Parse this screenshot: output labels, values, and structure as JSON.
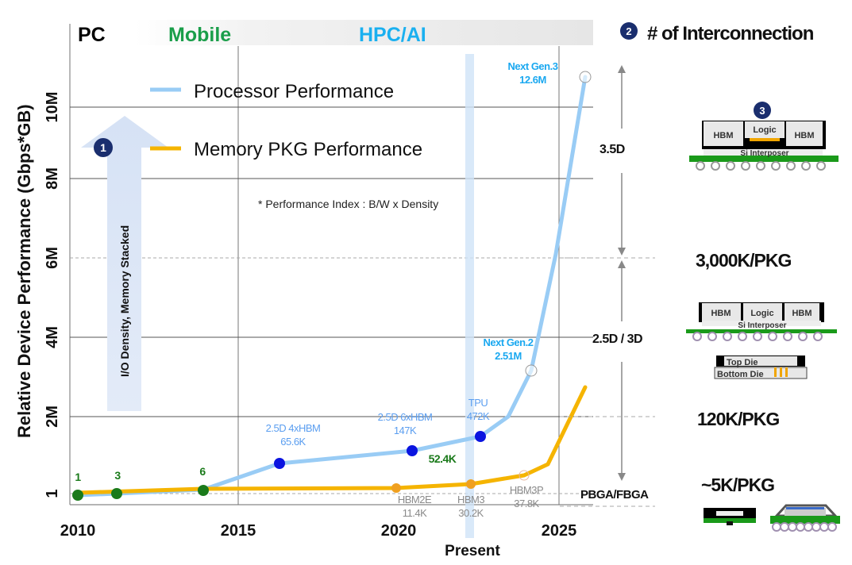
{
  "chart_data": {
    "type": "line",
    "title": "",
    "ylabel": "Relative Device Performance (Gbps*GB)",
    "xlabel": "Present",
    "x_ticks": [
      "2010",
      "2015",
      "2020",
      "2025"
    ],
    "x_range": [
      2010,
      2026
    ],
    "y_ticks": [
      "1",
      "2M",
      "4M",
      "6M",
      "8M",
      "10M"
    ],
    "y_tick_values": [
      0,
      2000000,
      4000000,
      6000000,
      8000000,
      10000000
    ],
    "y_range": [
      0,
      11000000
    ],
    "grid": true,
    "present_year": 2022.5,
    "eras": [
      {
        "label": "PC",
        "color": "#000000"
      },
      {
        "label": "Mobile",
        "color": "#1a9e4a"
      },
      {
        "label": "HPC/AI",
        "color": "#1ab0f0"
      }
    ],
    "legend": {
      "placement": "top-left",
      "entries": [
        {
          "name": "Processor Performance",
          "color": "#99ccf5"
        },
        {
          "name": "Memory PKG Performance",
          "color": "#f5b400"
        }
      ]
    },
    "note": "* Performance Index : B/W x Density",
    "series": [
      {
        "name": "Processor Performance",
        "color": "#99ccf5",
        "points": [
          {
            "x": 2010,
            "y": 1,
            "label": "1",
            "marker": "green"
          },
          {
            "x": 2011.2,
            "y": 3,
            "label": "3",
            "marker": "green"
          },
          {
            "x": 2013.9,
            "y": 6,
            "label": "6",
            "marker": "green"
          },
          {
            "x": 2016.3,
            "y": 65600,
            "label": "2.5D 4xHBM\n65.6K",
            "marker": "blue"
          },
          {
            "x": 2020.7,
            "y": 147000,
            "label": "2.5D 6xHBM\n147K",
            "marker": "blue"
          },
          {
            "x": 2022.7,
            "y": 472000,
            "label": "TPU\n472K",
            "marker": "blue"
          },
          {
            "x": 2024.3,
            "y": 2510000,
            "label": "Next Gen.2\n2.51M",
            "marker": "open"
          },
          {
            "x": 2025.8,
            "y": 12600000,
            "label": "Next Gen.3\n12.6M",
            "marker": "open"
          }
        ]
      },
      {
        "name": "Memory PKG Performance",
        "color": "#f5b400",
        "points": [
          {
            "x": 2010,
            "y": 1
          },
          {
            "x": 2013.9,
            "y": 6
          },
          {
            "x": 2020.1,
            "y": 11400,
            "label": "HBM2E\n11.4K",
            "marker": "orange"
          },
          {
            "x": 2022.5,
            "y": 30200,
            "label": "HBM3\n30.2K",
            "marker": "orange"
          },
          {
            "x": 2024.1,
            "y": 37800,
            "label": "HBM3P\n37.8K",
            "marker": "open"
          },
          {
            "x": 2025.8,
            "y": 2700000
          }
        ]
      }
    ],
    "extra_labels": [
      {
        "text": "52.4K",
        "color": "#1a7a1a"
      }
    ],
    "annotations": {
      "badge_1": "1",
      "arrow_text": "I/O Density, Memory  Stacked",
      "badge_2": "2",
      "interconnection_title": "# of Interconnection",
      "badge_3": "3",
      "tiers": [
        {
          "range": "3.5D",
          "count": "3,000K/PKG"
        },
        {
          "range": "2.5D / 3D",
          "count": "120K/PKG"
        },
        {
          "range": "PBGA/FBGA",
          "count": "~5K/PKG"
        }
      ],
      "pkg_labels": {
        "hbm": "HBM",
        "logic": "Logic",
        "interposer": "Si Interposer",
        "top_die": "Top Die",
        "bottom_die": "Bottom Die"
      }
    }
  }
}
